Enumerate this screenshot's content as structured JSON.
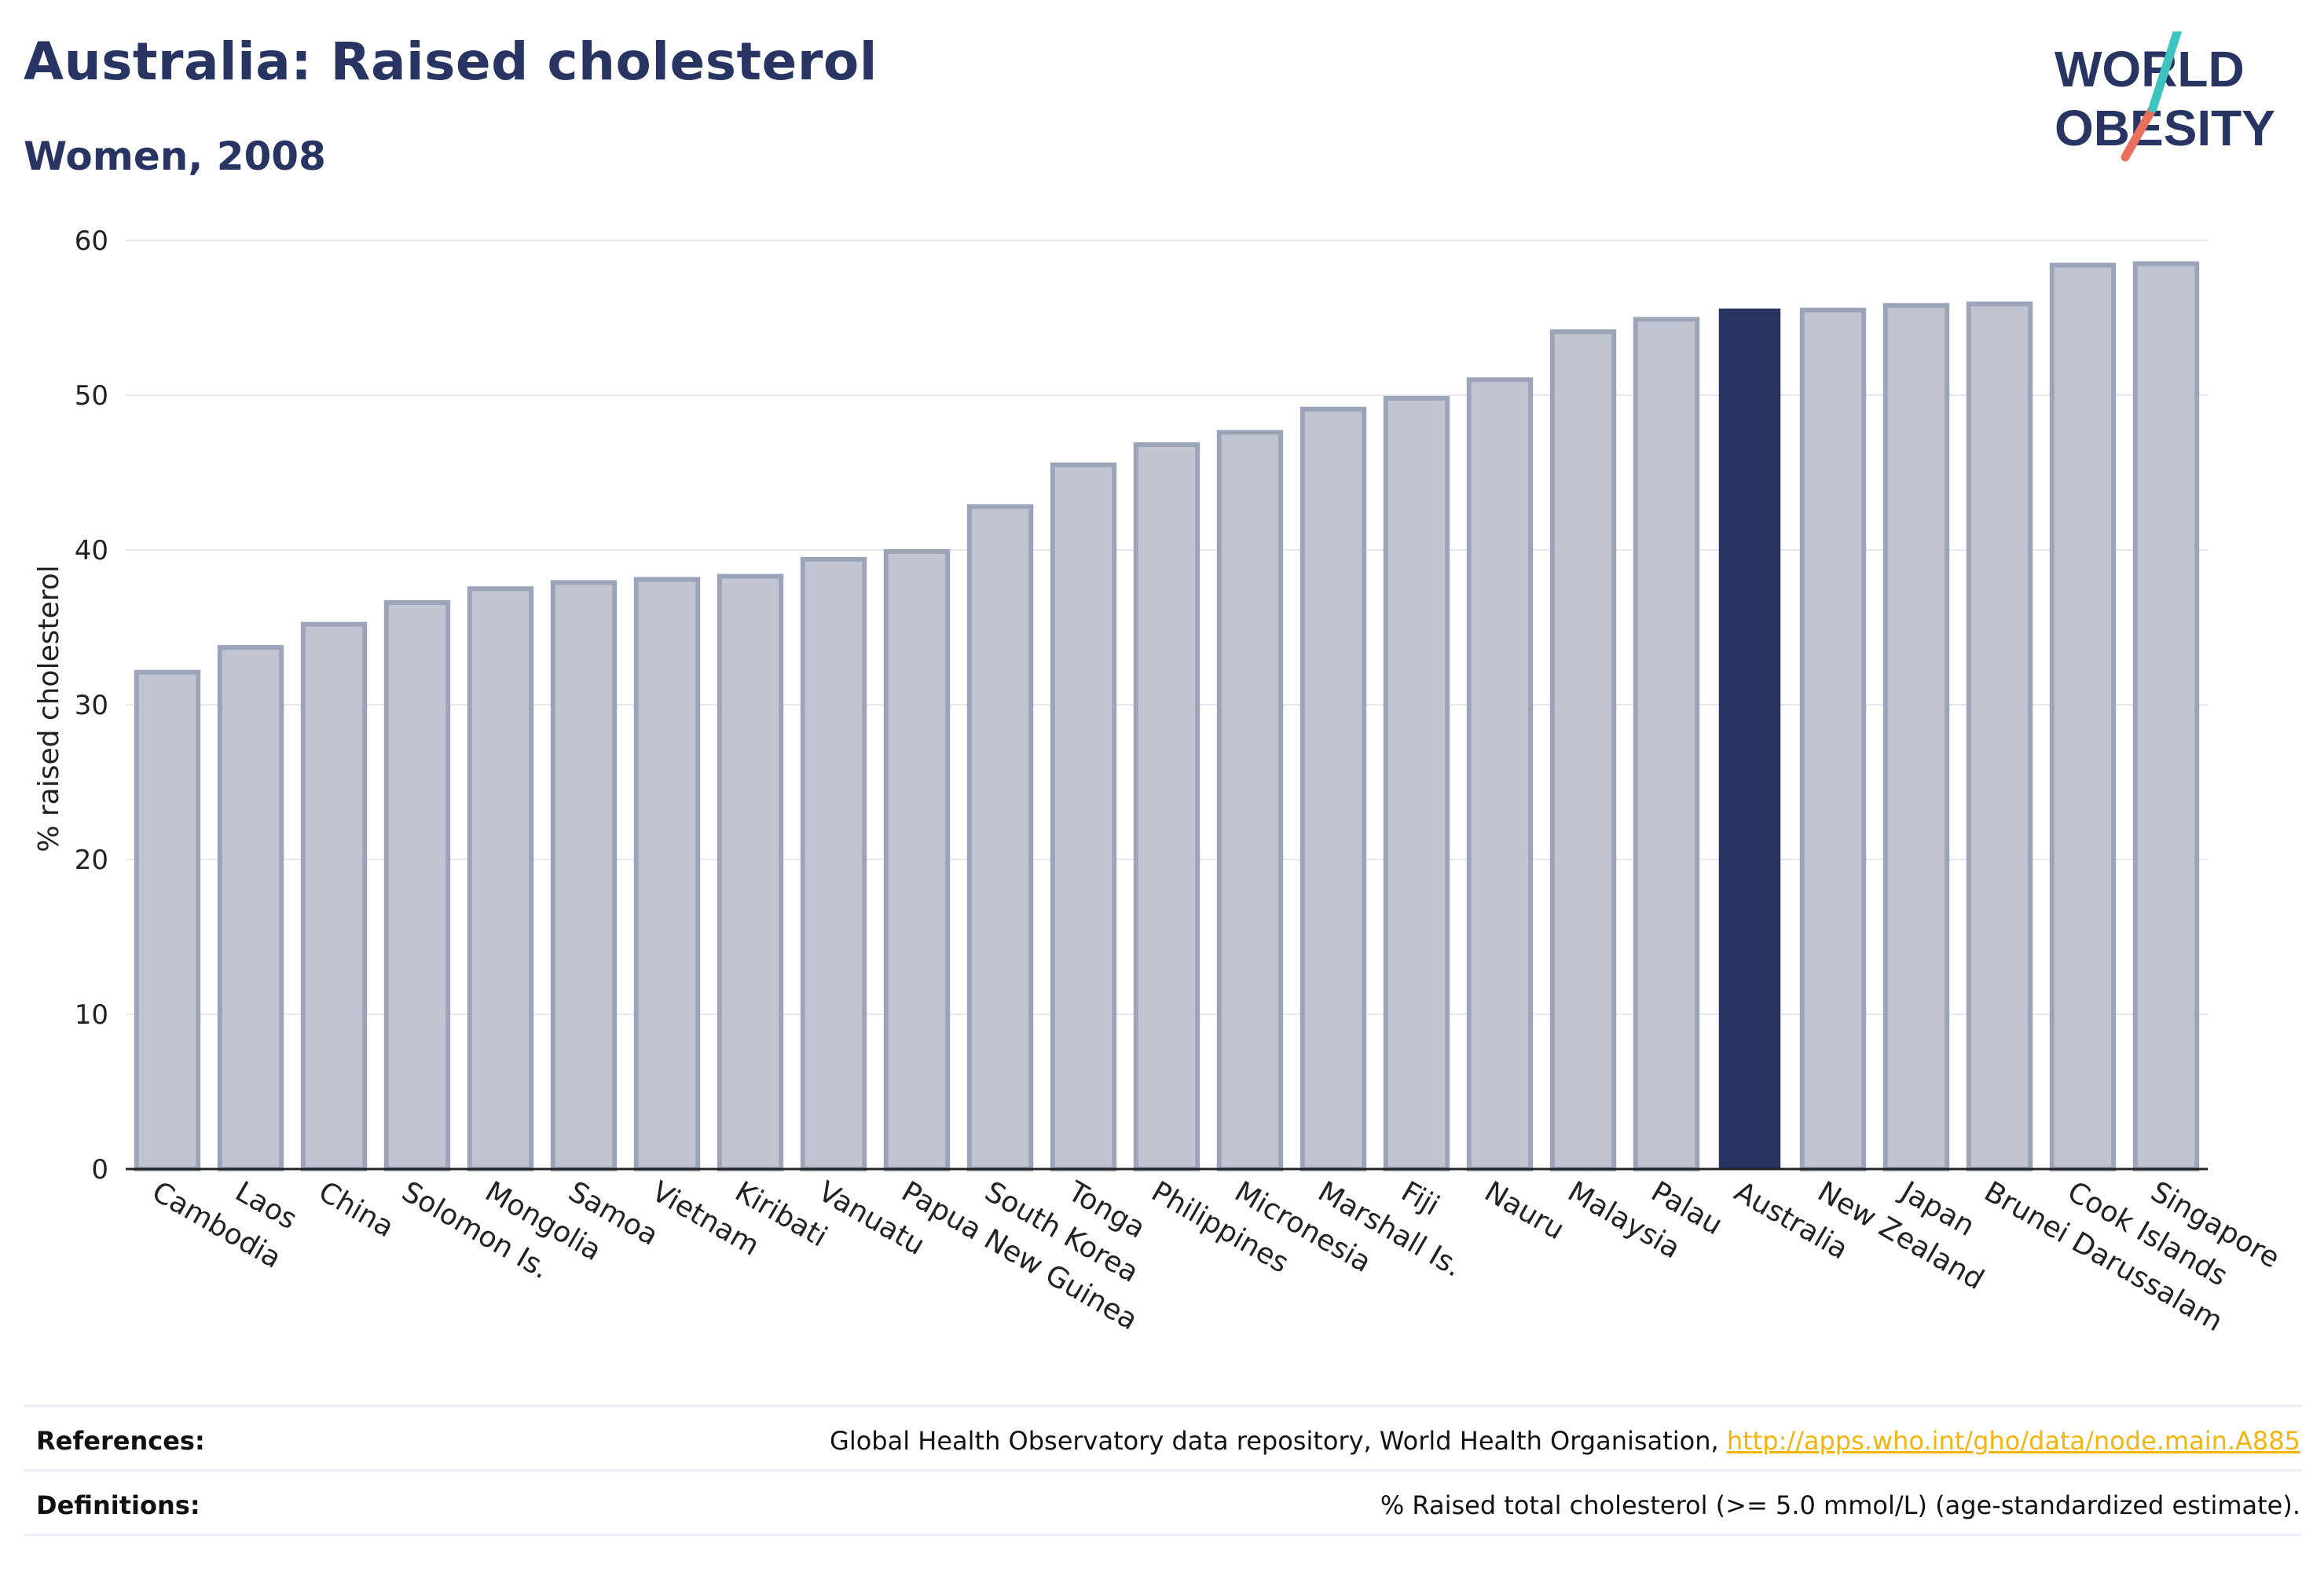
{
  "header": {
    "title": "Australia: Raised cholesterol",
    "subtitle": "Women, 2008"
  },
  "logo": {
    "line1": "WORLD",
    "line2": "OBESITY"
  },
  "colors": {
    "title": "#283462",
    "bar_fill": "#c1c5d1",
    "bar_stroke": "#9ca4b9",
    "highlight": "#283462",
    "link": "#f2b40f"
  },
  "chart_data": {
    "type": "bar",
    "ylabel": "% raised cholesterol",
    "ylim": [
      0,
      60
    ],
    "yticks": [
      0,
      10,
      20,
      30,
      40,
      50,
      60
    ],
    "grid": true,
    "highlight": "Australia",
    "categories": [
      "Cambodia",
      "Laos",
      "China",
      "Solomon Is.",
      "Mongolia",
      "Samoa",
      "Vietnam",
      "Kiribati",
      "Vanuatu",
      "Papua New Guinea",
      "South Korea",
      "Tonga",
      "Philippines",
      "Micronesia",
      "Marshall Is.",
      "Fiji",
      "Nauru",
      "Malaysia",
      "Palau",
      "Australia",
      "New Zealand",
      "Japan",
      "Brunei Darussalam",
      "Cook Islands",
      "Singapore"
    ],
    "values": [
      32.1,
      33.7,
      35.2,
      36.6,
      37.5,
      37.9,
      38.1,
      38.3,
      39.4,
      39.9,
      42.8,
      45.5,
      46.8,
      47.6,
      49.1,
      49.8,
      51.0,
      54.1,
      54.9,
      55.6,
      55.5,
      55.8,
      55.9,
      58.4,
      58.5
    ]
  },
  "footer": {
    "references_label": "References:",
    "references_text": "Global Health Observatory data repository, World Health Organisation,",
    "references_link": "http://apps.who.int/gho/data/node.main.A885",
    "definitions_label": "Definitions:",
    "definitions_text": "% Raised total cholesterol (>= 5.0 mmol/L) (age-standardized estimate)."
  }
}
